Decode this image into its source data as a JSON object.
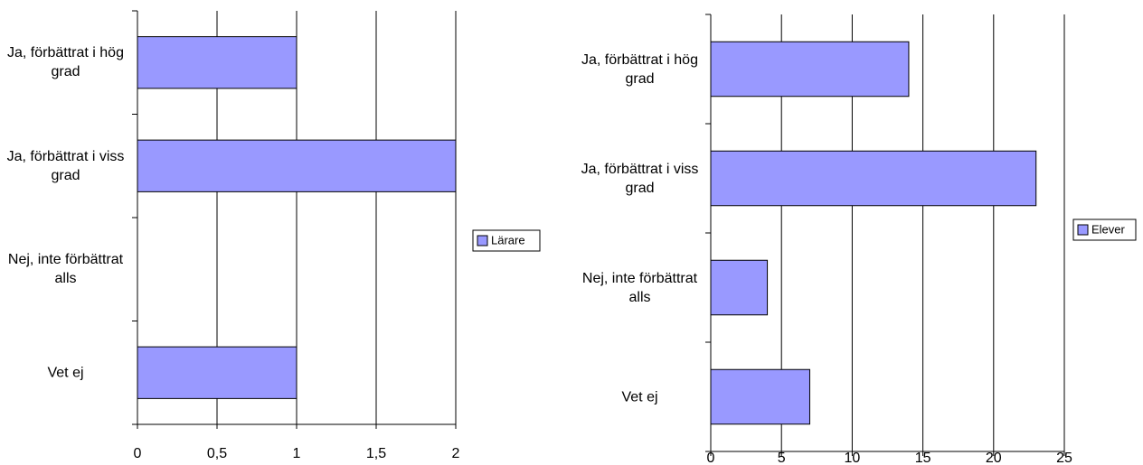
{
  "chart_data": [
    {
      "type": "bar",
      "orientation": "horizontal",
      "categories": [
        "Ja, förbättrat i hög grad",
        "Ja, förbättrat i viss grad",
        "Nej, inte förbättrat alls",
        "Vet ej"
      ],
      "series": [
        {
          "name": "Lärare",
          "color": "#9999ff",
          "values": [
            1,
            2,
            0,
            1
          ]
        }
      ],
      "xlim": [
        0,
        2
      ],
      "xticks": [
        0,
        {
          "value": 0.5,
          "label": "0,5"
        },
        1,
        {
          "value": 1.5,
          "label": "1,5"
        },
        2
      ],
      "grid": true,
      "legend": "right"
    },
    {
      "type": "bar",
      "orientation": "horizontal",
      "categories": [
        "Ja, förbättrat i hög grad",
        "Ja, förbättrat i viss grad",
        "Nej, inte förbättrat alls",
        "Vet ej"
      ],
      "series": [
        {
          "name": "Elever",
          "color": "#9999ff",
          "values": [
            14,
            23,
            4,
            7
          ]
        }
      ],
      "xlim": [
        0,
        25
      ],
      "xticks": [
        0,
        5,
        10,
        15,
        20,
        25
      ],
      "grid": true,
      "legend": "right"
    }
  ]
}
